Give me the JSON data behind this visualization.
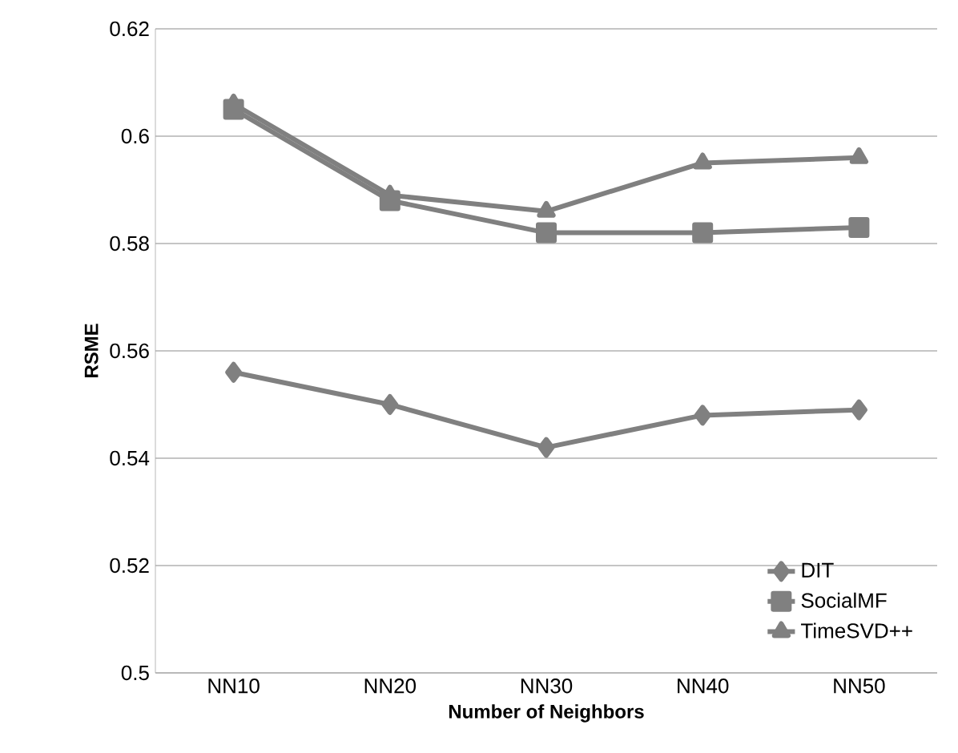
{
  "chart_data": {
    "type": "line",
    "xlabel": "Number of Neighbors",
    "ylabel": "RSME",
    "categories": [
      "NN10",
      "NN20",
      "NN30",
      "NN40",
      "NN50"
    ],
    "series": [
      {
        "name": "DIT",
        "color": "#808080",
        "marker": "diamond",
        "values": [
          0.556,
          0.55,
          0.542,
          0.548,
          0.549
        ]
      },
      {
        "name": "SocialMF",
        "color": "#808080",
        "marker": "square",
        "values": [
          0.605,
          0.588,
          0.582,
          0.582,
          0.583
        ]
      },
      {
        "name": "TimeSVD++",
        "color": "#808080",
        "marker": "triangle",
        "values": [
          0.606,
          0.589,
          0.586,
          0.595,
          0.596
        ]
      }
    ],
    "ylim": [
      0.5,
      0.62
    ],
    "yticks": [
      0.5,
      0.52,
      0.54,
      0.56,
      0.58,
      0.6,
      0.62
    ],
    "grid": "y",
    "legend": "bottom right",
    "line_style": "solid"
  }
}
